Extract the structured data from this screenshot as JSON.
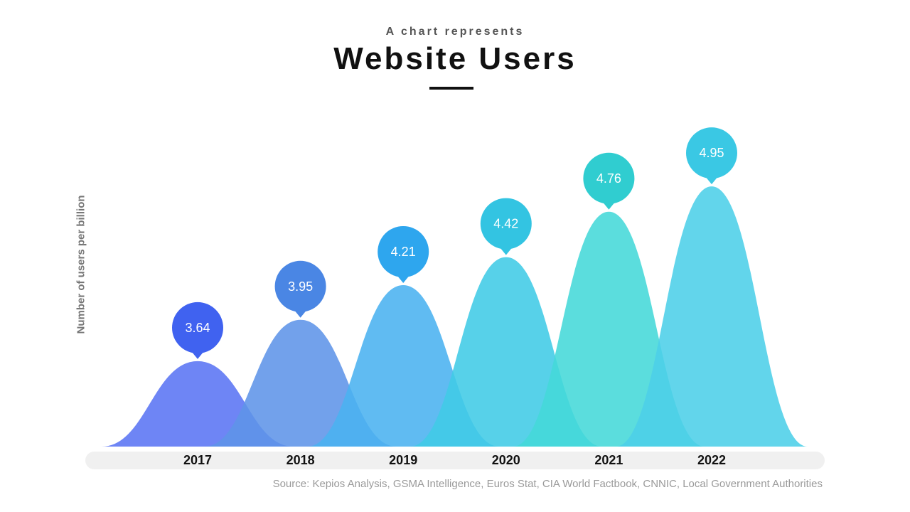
{
  "chart_data": {
    "type": "area",
    "subtitle": "A chart represents",
    "title": "Website Users",
    "ylabel": "Number of users per billion",
    "xlabel": "",
    "categories": [
      "2017",
      "2018",
      "2019",
      "2020",
      "2021",
      "2022"
    ],
    "values": [
      3.64,
      3.95,
      4.21,
      4.42,
      4.76,
      4.95
    ],
    "value_labels": [
      "3.64",
      "3.95",
      "4.21",
      "4.42",
      "4.76",
      "4.95"
    ],
    "ylim": [
      3.0,
      5.1
    ],
    "grid": false,
    "legend": "none",
    "source": "Source: Kepios Analysis, GSMA Intelligence, Euros Stat, CIA World Factbook,  CNNIC, Local Government Authorities"
  },
  "colors": {
    "series": [
      "#5a74f4",
      "#5e94e8",
      "#4ab2f0",
      "#40cbe6",
      "#44d8d8",
      "#4ccfe8"
    ],
    "bubbles": [
      "#4062f0",
      "#4a86e4",
      "#2ea6ee",
      "#33c4e2",
      "#30cdd0",
      "#3ac8e4"
    ],
    "axis_band": "#f0f0f0"
  }
}
